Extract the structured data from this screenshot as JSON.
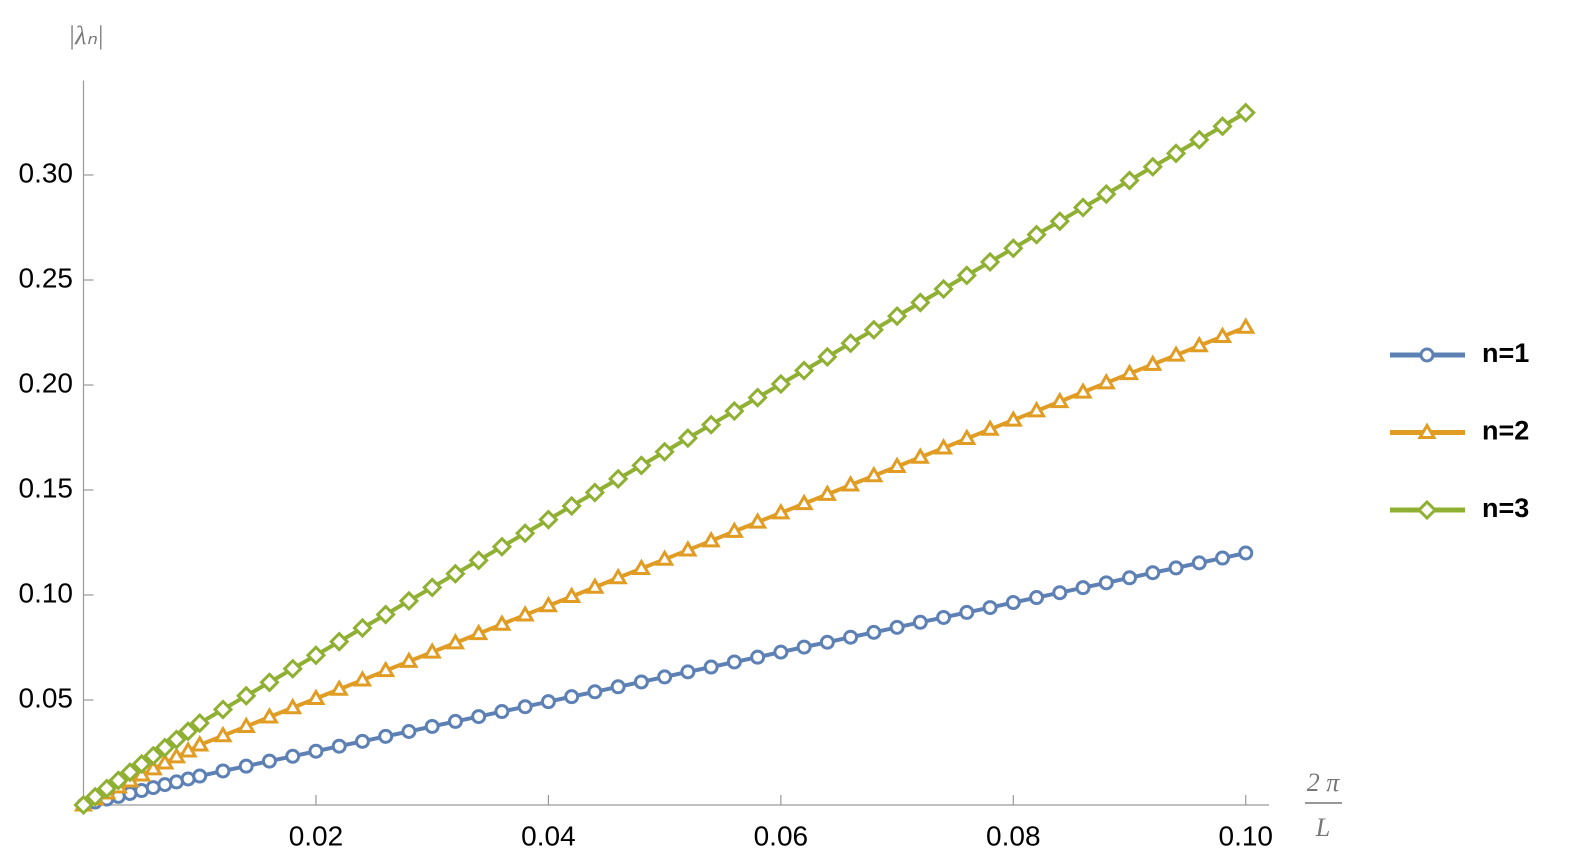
{
  "chart_data": {
    "type": "line",
    "y_label": "|λₙ|",
    "x_label": {
      "numerator": "2 π",
      "denominator": "L"
    },
    "x": [
      0,
      0.001,
      0.002,
      0.003,
      0.004,
      0.005,
      0.006,
      0.007,
      0.008,
      0.009,
      0.01,
      0.012,
      0.014,
      0.016,
      0.018,
      0.02,
      0.022,
      0.024,
      0.026,
      0.028,
      0.03,
      0.032,
      0.034,
      0.036,
      0.038,
      0.04,
      0.042,
      0.044,
      0.046,
      0.048,
      0.05,
      0.052,
      0.054,
      0.056,
      0.058,
      0.06,
      0.062,
      0.064,
      0.066,
      0.068,
      0.07,
      0.072,
      0.074,
      0.076,
      0.078,
      0.08,
      0.082,
      0.084,
      0.086,
      0.088,
      0.09,
      0.092,
      0.094,
      0.096,
      0.098,
      0.1
    ],
    "series": [
      {
        "name": "n=1",
        "color": "#5e81b5",
        "marker": "circle",
        "values": [
          0,
          0.0014,
          0.0028,
          0.0041,
          0.0055,
          0.0069,
          0.0083,
          0.0097,
          0.011,
          0.0124,
          0.0138,
          0.0162,
          0.0185,
          0.0209,
          0.0232,
          0.0256,
          0.028,
          0.0303,
          0.0327,
          0.035,
          0.0374,
          0.0398,
          0.0421,
          0.0445,
          0.0468,
          0.0492,
          0.0516,
          0.0539,
          0.0563,
          0.0586,
          0.061,
          0.0634,
          0.0657,
          0.0681,
          0.0704,
          0.0728,
          0.0752,
          0.0775,
          0.0799,
          0.0822,
          0.0846,
          0.087,
          0.0893,
          0.0917,
          0.094,
          0.0964,
          0.0988,
          0.1011,
          0.1035,
          0.1058,
          0.1082,
          0.1106,
          0.1129,
          0.1153,
          0.1176,
          0.12
        ]
      },
      {
        "name": "n=2",
        "color": "#e19c24",
        "marker": "triangle",
        "values": [
          0,
          0.0029,
          0.0057,
          0.0086,
          0.0114,
          0.0143,
          0.0172,
          0.02,
          0.0229,
          0.0257,
          0.0286,
          0.033,
          0.0374,
          0.0419,
          0.0463,
          0.0507,
          0.0551,
          0.0595,
          0.064,
          0.0684,
          0.0728,
          0.0772,
          0.0816,
          0.0861,
          0.0905,
          0.0949,
          0.0993,
          0.1037,
          0.1082,
          0.1126,
          0.117,
          0.1214,
          0.1258,
          0.1303,
          0.1347,
          0.1391,
          0.1435,
          0.1479,
          0.1524,
          0.1568,
          0.1612,
          0.1656,
          0.17,
          0.1745,
          0.1789,
          0.1833,
          0.1877,
          0.1921,
          0.1966,
          0.201,
          0.2054,
          0.2098,
          0.2142,
          0.2187,
          0.2231,
          0.2275
        ]
      },
      {
        "name": "n=3",
        "color": "#8fb032",
        "marker": "diamond",
        "values": [
          0,
          0.0039,
          0.0078,
          0.0117,
          0.0156,
          0.0195,
          0.0234,
          0.0273,
          0.0312,
          0.0351,
          0.039,
          0.0455,
          0.052,
          0.0584,
          0.0649,
          0.0713,
          0.0778,
          0.0843,
          0.0907,
          0.0972,
          0.1036,
          0.1101,
          0.1165,
          0.123,
          0.1294,
          0.1359,
          0.1424,
          0.1488,
          0.1553,
          0.1617,
          0.1682,
          0.1747,
          0.1811,
          0.1876,
          0.194,
          0.2005,
          0.2069,
          0.2134,
          0.2199,
          0.2263,
          0.2328,
          0.2393,
          0.2457,
          0.2522,
          0.2586,
          0.2651,
          0.2716,
          0.278,
          0.2845,
          0.2909,
          0.2974,
          0.3039,
          0.3103,
          0.3168,
          0.3232,
          0.3297
        ]
      }
    ],
    "xlim": [
      0,
      0.102
    ],
    "ylim": [
      0,
      0.345
    ],
    "xticks": [
      0.02,
      0.04,
      0.06,
      0.08,
      {
        "value": 0.1,
        "label": "0.10"
      }
    ],
    "yticks": [
      0.05,
      {
        "value": 0.1,
        "label": "0.10"
      },
      0.15,
      {
        "value": 0.2,
        "label": "0.20"
      },
      0.25,
      {
        "value": 0.3,
        "label": "0.30"
      }
    ],
    "legend": "right",
    "grid": false
  }
}
